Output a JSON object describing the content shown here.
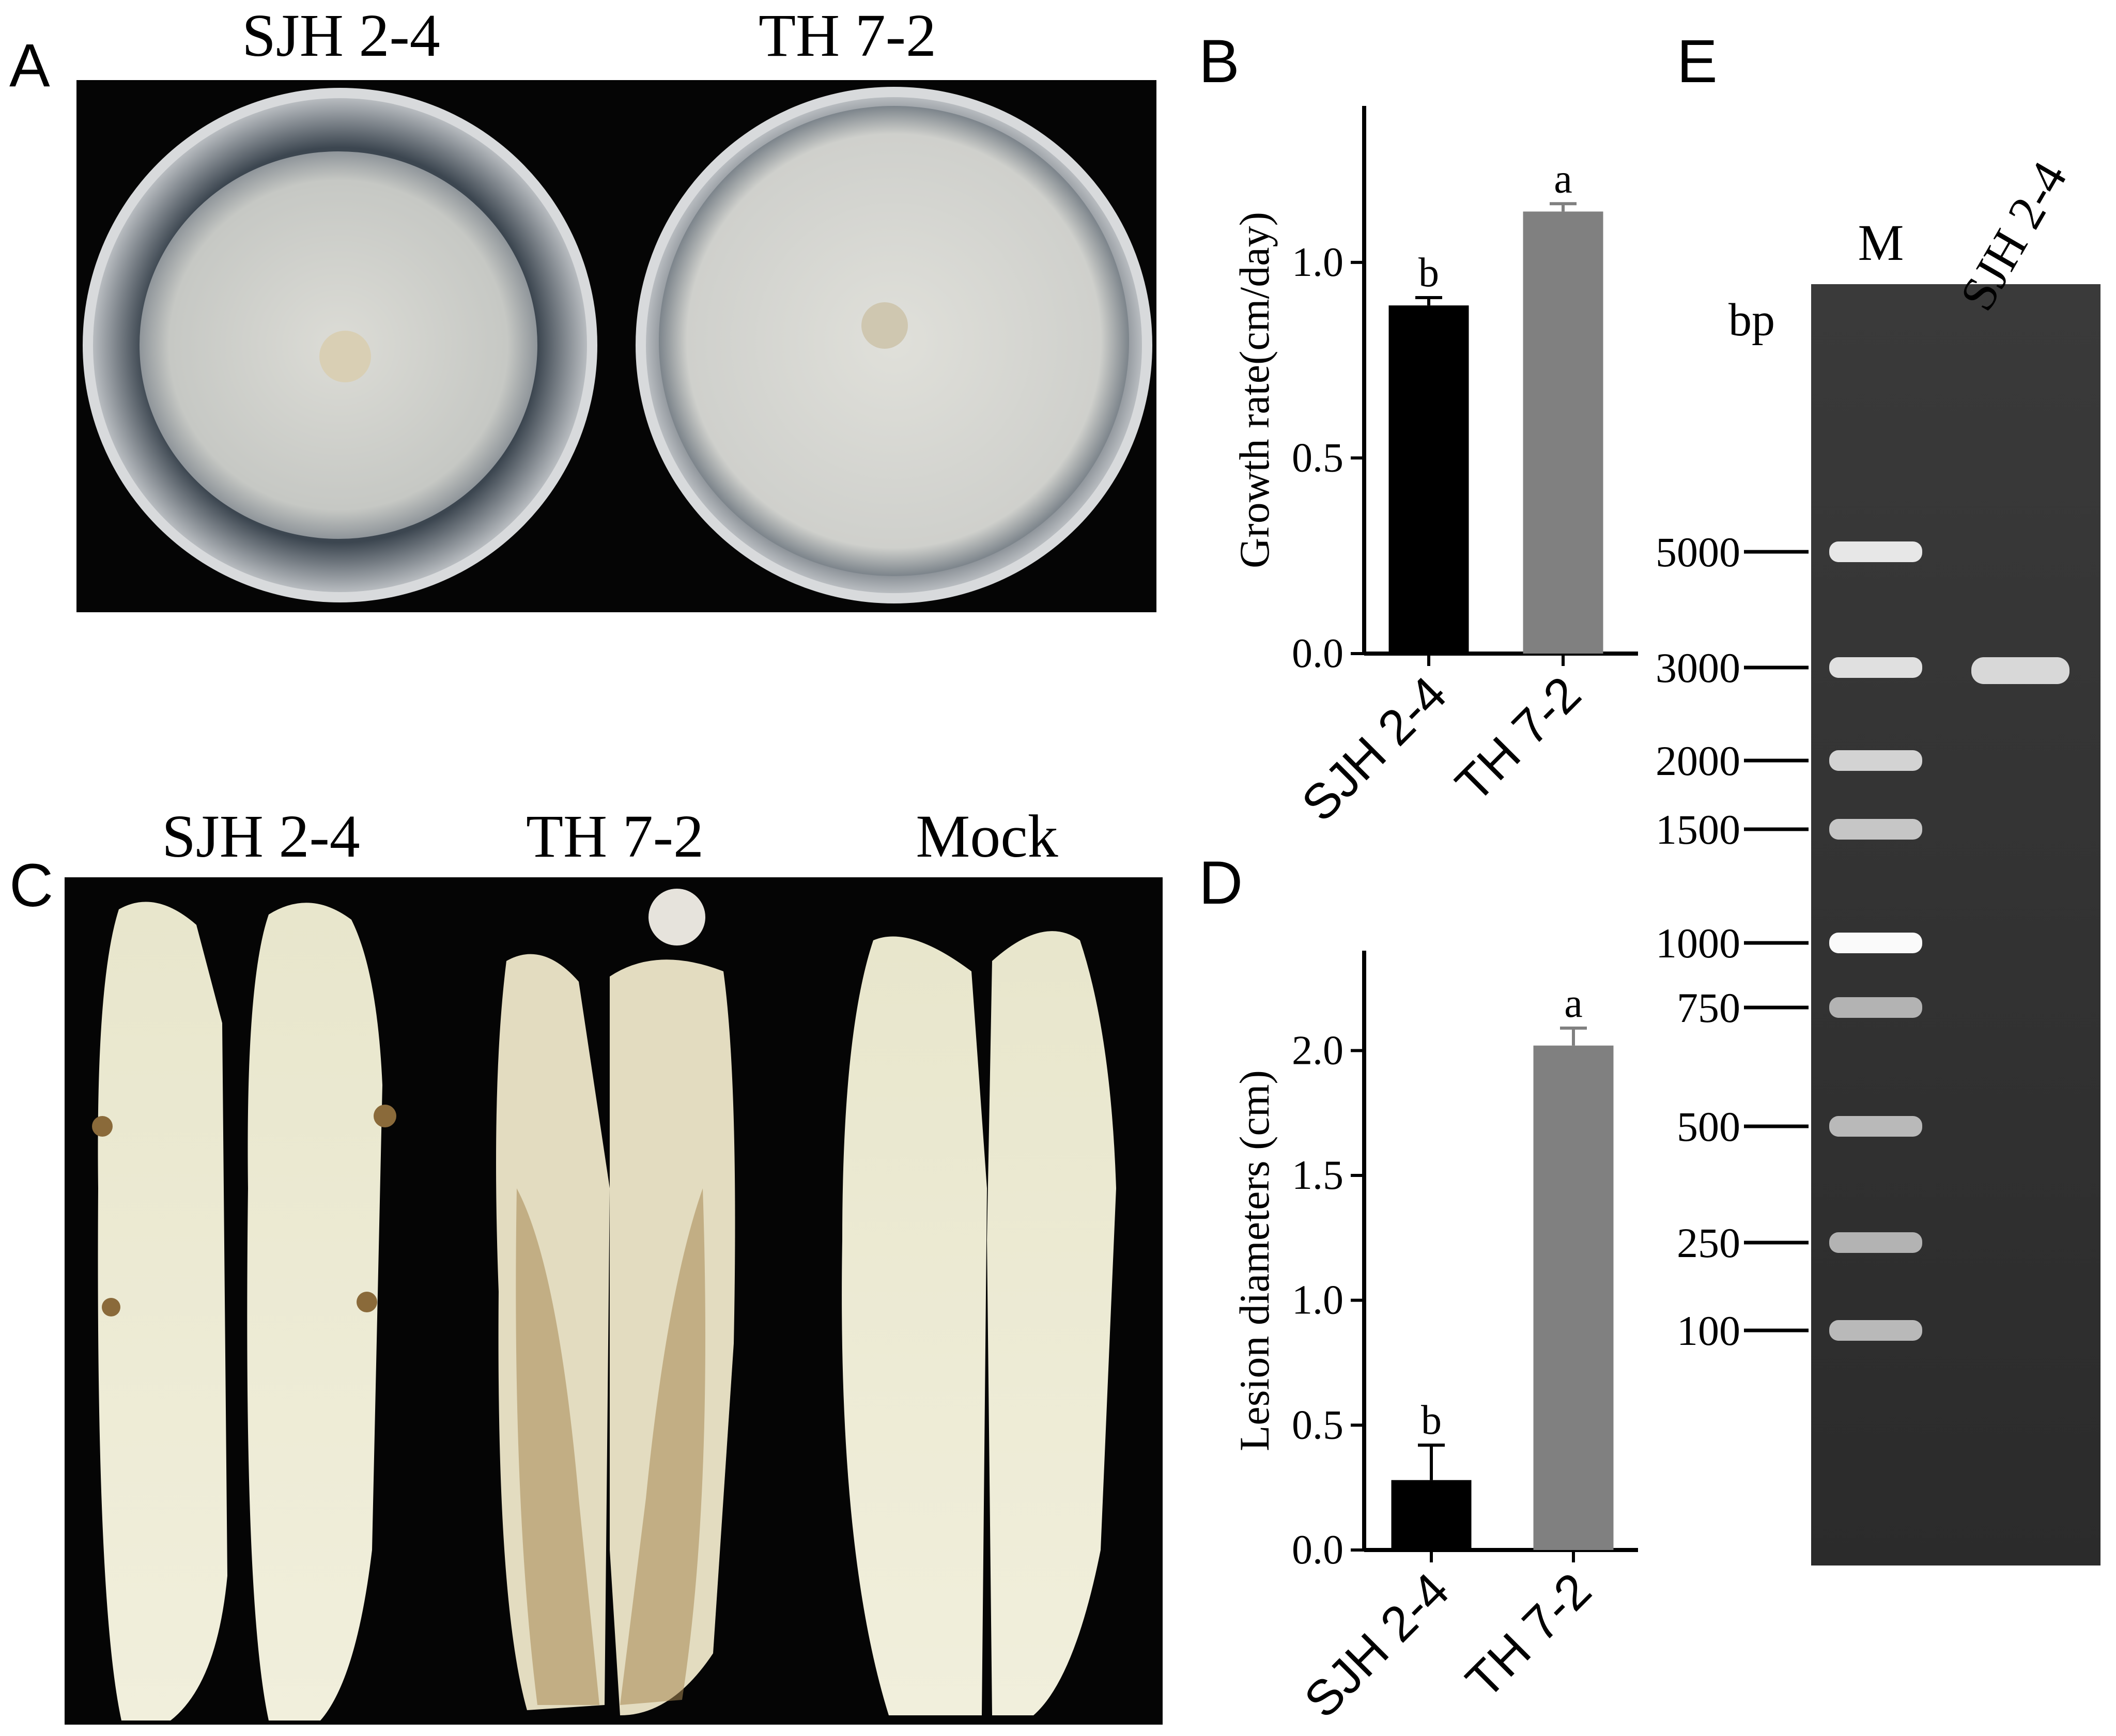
{
  "panel_A": {
    "letter": "A",
    "plate_labels": [
      "SJH 2-4",
      "TH 7-2"
    ]
  },
  "panel_C": {
    "letter": "C",
    "sample_labels": [
      "SJH 2-4",
      "TH 7-2",
      "Mock"
    ]
  },
  "panel_E": {
    "letter": "E",
    "lane_labels": [
      "M",
      "SJH 2-4"
    ],
    "unit_label": "bp",
    "ladder_bp": [
      5000,
      3000,
      2000,
      1500,
      1000,
      750,
      500,
      250,
      100
    ],
    "sample_band_bp": 3000
  },
  "chart_data": [
    {
      "panel": "B",
      "type": "bar",
      "title": "",
      "xlabel": "",
      "ylabel": "Growth rate(cm/day)",
      "categories": [
        "SJH 2-4",
        "TH 7-2"
      ],
      "values": [
        0.89,
        1.13
      ],
      "errors": [
        0.02,
        0.02
      ],
      "significance": [
        "b",
        "a"
      ],
      "colors": [
        "#000000",
        "#808080"
      ],
      "ylim": [
        0.0,
        1.4
      ],
      "yticks": [
        "0.0",
        "0.5",
        "1.0"
      ],
      "ytick_values": [
        0.0,
        0.5,
        1.0
      ]
    },
    {
      "panel": "D",
      "type": "bar",
      "title": "",
      "xlabel": "",
      "ylabel": "Lesion diameters (cm)",
      "categories": [
        "SJH 2-4",
        "TH 7-2"
      ],
      "values": [
        0.28,
        2.02
      ],
      "errors": [
        0.14,
        0.07
      ],
      "significance": [
        "b",
        "a"
      ],
      "colors": [
        "#000000",
        "#808080"
      ],
      "ylim": [
        0.0,
        2.4
      ],
      "yticks": [
        "0.0",
        "0.5",
        "1.0",
        "1.5",
        "2.0"
      ],
      "ytick_values": [
        0.0,
        0.5,
        1.0,
        1.5,
        2.0
      ]
    }
  ]
}
